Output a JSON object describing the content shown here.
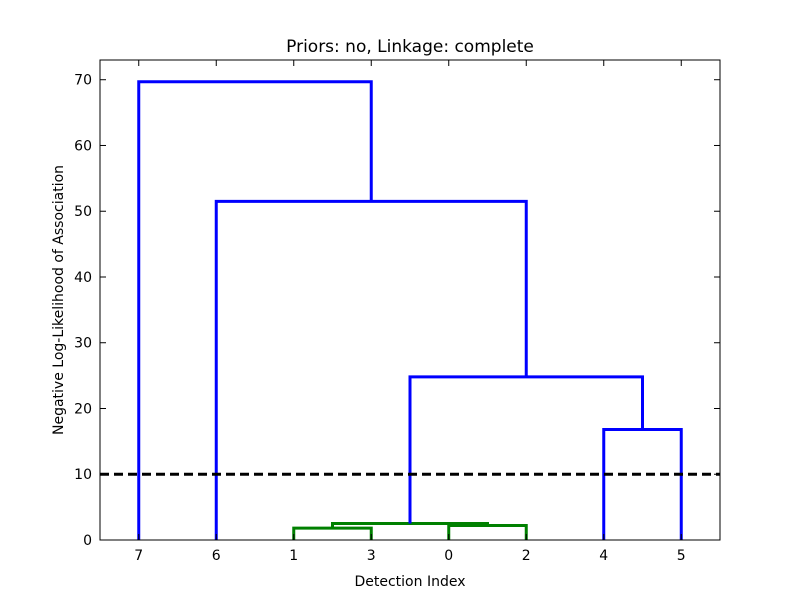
{
  "chart_data": {
    "type": "dendrogram",
    "title": "Priors: no, Linkage: complete",
    "xlabel": "Detection Index",
    "ylabel": "Negative Log-Likelihood of Association",
    "leaf_order": [
      "7",
      "6",
      "1",
      "3",
      "0",
      "2",
      "4",
      "5"
    ],
    "ylim": [
      0,
      73
    ],
    "yticks": [
      0,
      10,
      20,
      30,
      40,
      50,
      60,
      70
    ],
    "threshold": 10,
    "threshold_style": "black dashed",
    "colors": {
      "cluster": "#008000",
      "above_threshold": "#0000ff",
      "threshold": "#000000"
    },
    "merges": [
      {
        "left": "1",
        "right": "3",
        "height": 1.8,
        "color": "#008000"
      },
      {
        "left": "0",
        "right": "2",
        "height": 2.2,
        "color": "#008000"
      },
      {
        "left": "(1,3)",
        "right": "(0,2)",
        "height": 2.5,
        "color": "#008000"
      },
      {
        "left": "4",
        "right": "5",
        "height": 16.8,
        "color": "#0000ff"
      },
      {
        "left": "(1,3,0,2)",
        "right": "(4,5)",
        "height": 24.8,
        "color": "#0000ff"
      },
      {
        "left": "6",
        "right": "(1,3,0,2,4,5)",
        "height": 51.5,
        "color": "#0000ff"
      },
      {
        "left": "7",
        "right": "(6,1,3,0,2,4,5)",
        "height": 69.7,
        "color": "#0000ff"
      }
    ]
  }
}
